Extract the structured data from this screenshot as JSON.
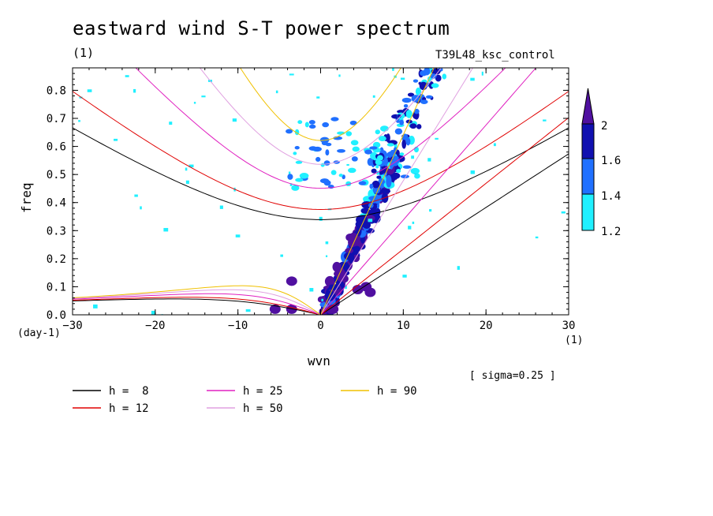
{
  "title": "eastward wind S-T power spectrum",
  "run_number": "(1)",
  "case_label": "T39L48_ksc_control",
  "sigma_note": "[ sigma=0.25 ]",
  "colors": {
    "h8": "#000000",
    "h12": "#e00000",
    "h25": "#e020c0",
    "h50": "#e0a0e0",
    "h90": "#f0c000",
    "c12": "#20f0ff",
    "c14": "#2070ff",
    "c16": "#1010b0",
    "c20": "#5010a0"
  },
  "chart_data": {
    "type": "heatmap",
    "title": "eastward wind S-T power spectrum",
    "xlabel": "wvn",
    "ylabel": "freq",
    "x_unit": "(1)",
    "y_unit": "(day-1)",
    "xlim": [
      -30,
      30
    ],
    "ylim": [
      0,
      0.88
    ],
    "x_ticks": [
      -30,
      -20,
      -10,
      0,
      10,
      20,
      30
    ],
    "y_ticks": [
      0.0,
      0.1,
      0.2,
      0.3,
      0.4,
      0.5,
      0.6,
      0.7,
      0.8
    ],
    "colorbar": {
      "levels": [
        1.2,
        1.4,
        1.6,
        2
      ],
      "labels": [
        "1.2",
        "1.4",
        "1.6",
        "2"
      ]
    },
    "dispersion_curves": [
      {
        "name": "h =  8",
        "h": 8
      },
      {
        "name": "h = 12",
        "h": 12
      },
      {
        "name": "h = 25",
        "h": 25
      },
      {
        "name": "h = 50",
        "h": 50
      },
      {
        "name": "h = 90",
        "h": 90
      }
    ],
    "power_regions": [
      {
        "level": 2.0,
        "points": [
          [
            1,
            0.02
          ],
          [
            2,
            0.06
          ],
          [
            3,
            0.12
          ],
          [
            4,
            0.2
          ],
          [
            5,
            0.28
          ],
          [
            6,
            0.35
          ],
          [
            7,
            0.42
          ],
          [
            8,
            0.5
          ],
          [
            9,
            0.52
          ],
          [
            7,
            0.55
          ],
          [
            6,
            0.4
          ],
          [
            5,
            0.32
          ],
          [
            4,
            0.24
          ],
          [
            3,
            0.16
          ],
          [
            2,
            0.08
          ]
        ]
      },
      {
        "level": 1.6,
        "points": [
          [
            -5,
            0.02
          ],
          [
            -4,
            0.12
          ],
          [
            4,
            0.1
          ],
          [
            6,
            0.08
          ],
          [
            8,
            0.75
          ],
          [
            9,
            0.82
          ]
        ]
      },
      {
        "level": 1.2,
        "points": [
          [
            10,
            0.6
          ],
          [
            12,
            0.65
          ],
          [
            13,
            0.87
          ],
          [
            -10,
            0.12
          ],
          [
            -8,
            0.8
          ],
          [
            -16,
            0.22
          ],
          [
            -22,
            0.55
          ]
        ]
      }
    ]
  },
  "legend": [
    {
      "label": "h =  8",
      "color_key": "h8"
    },
    {
      "label": "h = 12",
      "color_key": "h12"
    },
    {
      "label": "h = 25",
      "color_key": "h25"
    },
    {
      "label": "h = 50",
      "color_key": "h50"
    },
    {
      "label": "h = 90",
      "color_key": "h90"
    }
  ]
}
